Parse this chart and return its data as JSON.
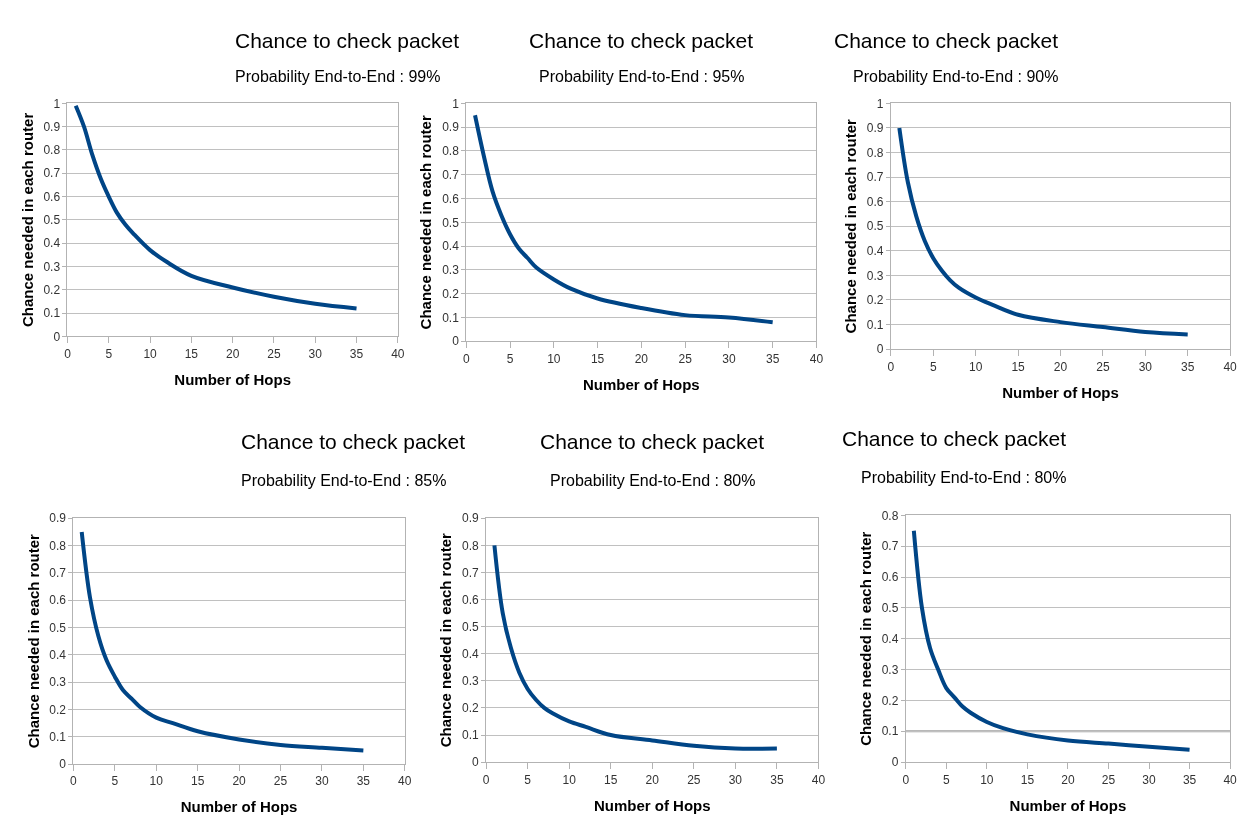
{
  "chart_data": [
    {
      "type": "line",
      "title": "Chance to check packet",
      "subtitle": "Probability End-to-End : 99%",
      "xlabel": "Number of Hops",
      "ylabel": "Chance needed in each router",
      "x": [
        1,
        2,
        3,
        4,
        5,
        6,
        7,
        8,
        10,
        12,
        15,
        20,
        25,
        30,
        35
      ],
      "values": [
        0.99,
        0.9,
        0.78,
        0.68,
        0.6,
        0.53,
        0.48,
        0.44,
        0.37,
        0.32,
        0.26,
        0.21,
        0.17,
        0.14,
        0.12
      ],
      "color": "#004586",
      "xlim": [
        0,
        40
      ],
      "ylim": [
        0,
        1
      ],
      "xticks": [
        0,
        5,
        10,
        15,
        20,
        25,
        30,
        35,
        40
      ],
      "yticks": [
        0,
        0.1,
        0.2,
        0.3,
        0.4,
        0.5,
        0.6,
        0.7,
        0.8,
        0.9,
        1
      ],
      "grid": "y"
    },
    {
      "type": "line",
      "title": "Chance to check packet",
      "subtitle": "Probability End-to-End : 95%",
      "xlabel": "Number of Hops",
      "ylabel": "Chance needed in each router",
      "x": [
        1,
        2,
        3,
        4,
        5,
        6,
        7,
        8,
        10,
        12,
        15,
        20,
        25,
        30,
        35
      ],
      "values": [
        0.95,
        0.78,
        0.63,
        0.53,
        0.45,
        0.39,
        0.35,
        0.31,
        0.26,
        0.22,
        0.18,
        0.14,
        0.11,
        0.1,
        0.08
      ],
      "color": "#004586",
      "xlim": [
        0,
        40
      ],
      "ylim": [
        0,
        1
      ],
      "xticks": [
        0,
        5,
        10,
        15,
        20,
        25,
        30,
        35,
        40
      ],
      "yticks": [
        0,
        0.1,
        0.2,
        0.3,
        0.4,
        0.5,
        0.6,
        0.7,
        0.8,
        0.9,
        1
      ],
      "grid": "y"
    },
    {
      "type": "line",
      "title": "Chance to check packet",
      "subtitle": "Probability End-to-End : 90%",
      "xlabel": "Number of Hops",
      "ylabel": "Chance needed in each router",
      "x": [
        1,
        2,
        3,
        4,
        5,
        6,
        7,
        8,
        10,
        12,
        15,
        20,
        25,
        30,
        35
      ],
      "values": [
        0.9,
        0.68,
        0.54,
        0.44,
        0.37,
        0.32,
        0.28,
        0.25,
        0.21,
        0.18,
        0.14,
        0.11,
        0.09,
        0.07,
        0.06
      ],
      "color": "#004586",
      "xlim": [
        0,
        40
      ],
      "ylim": [
        0,
        1
      ],
      "xticks": [
        0,
        5,
        10,
        15,
        20,
        25,
        30,
        35,
        40
      ],
      "yticks": [
        0,
        0.1,
        0.2,
        0.3,
        0.4,
        0.5,
        0.6,
        0.7,
        0.8,
        0.9,
        1
      ],
      "grid": "y"
    },
    {
      "type": "line",
      "title": "Chance to check packet",
      "subtitle": "Probability End-to-End : 85%",
      "xlabel": "Number of Hops",
      "ylabel": "Chance needed in each router",
      "x": [
        1,
        2,
        3,
        4,
        5,
        6,
        7,
        8,
        10,
        12,
        15,
        20,
        25,
        30,
        35
      ],
      "values": [
        0.85,
        0.61,
        0.47,
        0.38,
        0.32,
        0.27,
        0.24,
        0.21,
        0.17,
        0.15,
        0.12,
        0.09,
        0.07,
        0.06,
        0.05
      ],
      "color": "#004586",
      "xlim": [
        0,
        40
      ],
      "ylim": [
        0,
        0.9
      ],
      "xticks": [
        0,
        5,
        10,
        15,
        20,
        25,
        30,
        35,
        40
      ],
      "yticks": [
        0,
        0.1,
        0.2,
        0.3,
        0.4,
        0.5,
        0.6,
        0.7,
        0.8,
        0.9
      ],
      "grid": "y"
    },
    {
      "type": "line",
      "title": "Chance to check packet",
      "subtitle": "Probability End-to-End : 80%",
      "xlabel": "Number of Hops",
      "ylabel": "Chance needed in each router",
      "x": [
        1,
        2,
        3,
        4,
        5,
        6,
        7,
        8,
        10,
        12,
        15,
        20,
        25,
        30,
        35
      ],
      "values": [
        0.8,
        0.55,
        0.42,
        0.33,
        0.27,
        0.23,
        0.2,
        0.18,
        0.15,
        0.13,
        0.1,
        0.08,
        0.06,
        0.05,
        0.05
      ],
      "color": "#004586",
      "xlim": [
        0,
        40
      ],
      "ylim": [
        0,
        0.9
      ],
      "xticks": [
        0,
        5,
        10,
        15,
        20,
        25,
        30,
        35,
        40
      ],
      "yticks": [
        0,
        0.1,
        0.2,
        0.3,
        0.4,
        0.5,
        0.6,
        0.7,
        0.8,
        0.9
      ],
      "grid": "y"
    },
    {
      "type": "line",
      "title": "Chance to check packet",
      "subtitle": "Probability End-to-End : 80%",
      "xlabel": "Number of Hops",
      "ylabel": "Chance needed in each router",
      "x": [
        1,
        2,
        3,
        4,
        5,
        6,
        7,
        8,
        10,
        12,
        15,
        20,
        25,
        30,
        35
      ],
      "values": [
        0.75,
        0.5,
        0.37,
        0.3,
        0.24,
        0.21,
        0.18,
        0.16,
        0.13,
        0.11,
        0.09,
        0.07,
        0.06,
        0.05,
        0.04
      ],
      "color": "#004586",
      "xlim": [
        0,
        40
      ],
      "ylim": [
        0,
        0.8
      ],
      "xticks": [
        0,
        5,
        10,
        15,
        20,
        25,
        30,
        35,
        40
      ],
      "yticks": [
        0,
        0.1,
        0.2,
        0.3,
        0.4,
        0.5,
        0.6,
        0.7,
        0.8
      ],
      "grid": "y",
      "ref_lines": [
        {
          "axis": "y",
          "value": 0.1,
          "color": "#a0a0a0"
        }
      ]
    }
  ]
}
